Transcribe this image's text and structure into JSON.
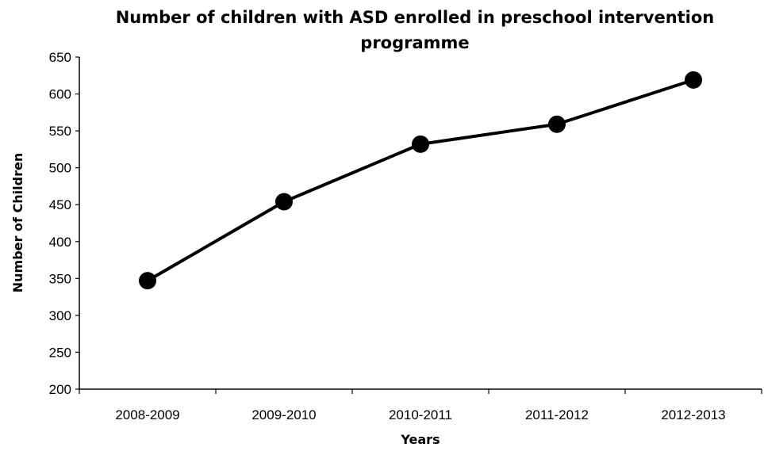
{
  "chart_data": {
    "type": "line",
    "title_lines": [
      "Number of children with ASD enrolled in preschool intervention",
      "programme"
    ],
    "xlabel": "Years",
    "ylabel": "Number of Children",
    "categories": [
      "2008-2009",
      "2009-2010",
      "2010-2011",
      "2011-2012",
      "2012-2013"
    ],
    "series": [
      {
        "values": [
          347,
          454,
          532,
          559,
          619
        ]
      }
    ],
    "ylim": [
      200,
      650
    ],
    "yticks": [
      200,
      250,
      300,
      350,
      400,
      450,
      500,
      550,
      600,
      650
    ],
    "grid": false,
    "legend": "none",
    "colors": {
      "line": "#000000",
      "marker": "#000000",
      "axis": "#000000",
      "background": "#ffffff"
    }
  }
}
